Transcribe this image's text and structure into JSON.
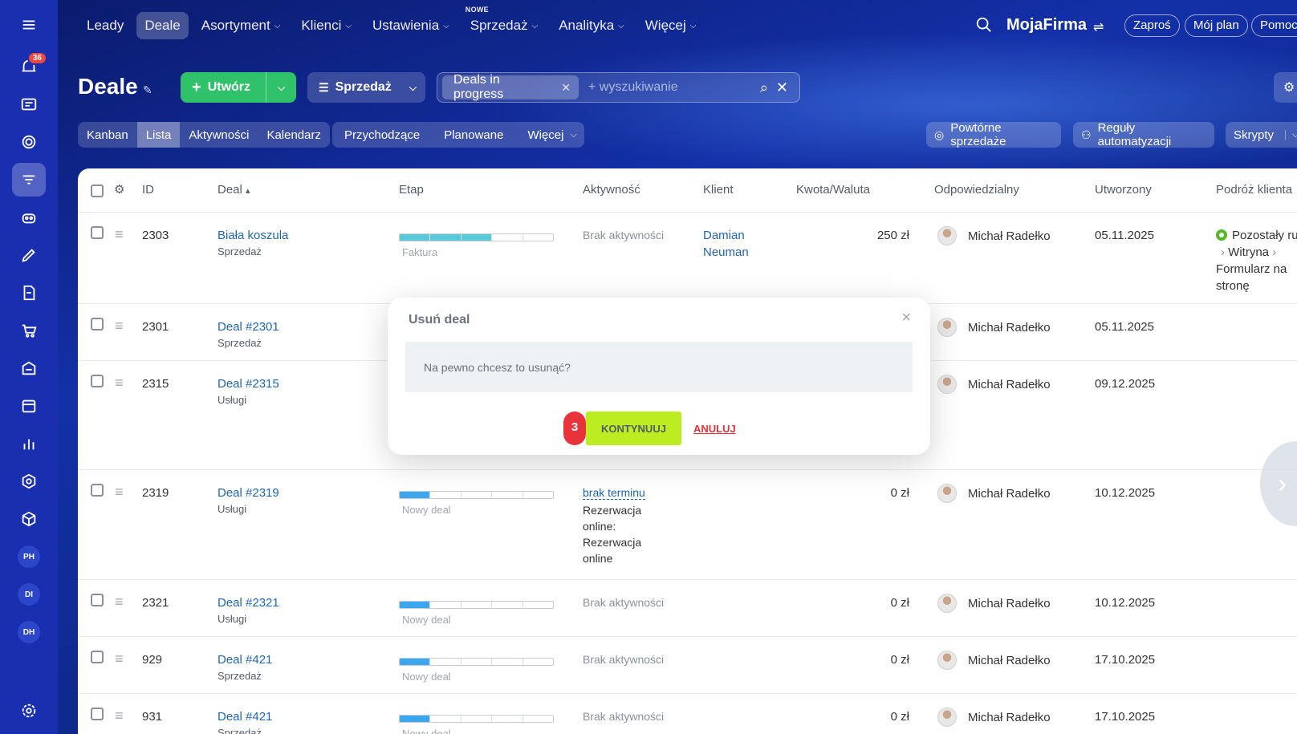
{
  "colors": {
    "accent_green": "#2fc26b",
    "sidebar": "#1a2fb0",
    "continue_btn": "#bbed21",
    "danger": "#e8333b",
    "link": "#2067b0"
  },
  "sidebar": {
    "notification_badge": "36",
    "avatars": [
      "PH",
      "DI",
      "DH"
    ]
  },
  "topnav": {
    "items": [
      {
        "label": "Leady"
      },
      {
        "label": "Deale"
      },
      {
        "label": "Asortyment"
      },
      {
        "label": "Klienci"
      },
      {
        "label": "Ustawienia"
      },
      {
        "label": "Sprzedaż",
        "badge": "NOWE"
      },
      {
        "label": "Analityka"
      },
      {
        "label": "Więcej"
      }
    ],
    "brand": "MojaFirma",
    "invite": "Zaproś",
    "my_plan": "Mój plan",
    "help": "Pomoc"
  },
  "header": {
    "title": "Deale",
    "create_label": "Utwórz",
    "funnel_label": "Sprzedaż",
    "filter_chip": "Deals in progress",
    "search_placeholder": "+ wyszukiwanie"
  },
  "view_tabs": [
    "Kanban",
    "Lista",
    "Aktywności",
    "Kalendarz"
  ],
  "sub_tabs": {
    "incoming": "Przychodzące",
    "planned": "Planowane",
    "more": "Więcej"
  },
  "actions": {
    "repeat_sales": "Powtórne sprzedaże",
    "automation": "Reguły automatyzacji",
    "scripts": "Skrypty"
  },
  "table": {
    "columns": {
      "id": "ID",
      "deal": "Deal",
      "stage": "Etap",
      "activity": "Aktywność",
      "client": "Klient",
      "amount": "Kwota/Waluta",
      "responsible": "Odpowiedzialny",
      "created": "Utworzony",
      "journey": "Podróż klienta"
    },
    "rows": [
      {
        "id": "2303",
        "deal": "Biała koszula",
        "funnel": "Sprzedaż",
        "stage": "Faktura",
        "stage_progress": 0.6,
        "activity": "Brak aktywności",
        "client_first": "Damian",
        "client_last": "Neuman",
        "amount": "250 zł",
        "responsible": "Michał Radełko",
        "created": "05.11.2025",
        "journey_1": "Pozostały ru",
        "journey_2": "Witryna",
        "journey_3": "Formularz na",
        "journey_4": "stronę"
      },
      {
        "id": "2301",
        "deal": "Deal #2301",
        "funnel": "Sprzedaż",
        "responsible": "Michał Radełko",
        "created": "05.11.2025"
      },
      {
        "id": "2315",
        "deal": "Deal #2315",
        "funnel": "Usługi",
        "responsible": "Michał Radełko",
        "created": "09.12.2025"
      },
      {
        "id": "2319",
        "deal": "Deal #2319",
        "funnel": "Usługi",
        "stage": "Nowy deal",
        "stage_progress": 0.2,
        "activity": "brak terminu",
        "activity_note_1": "Rezerwacja",
        "activity_note_2": "online:",
        "activity_note_3": "Rezerwacja",
        "activity_note_4": "online",
        "amount": "0 zł",
        "responsible": "Michał Radełko",
        "created": "10.12.2025"
      },
      {
        "id": "2321",
        "deal": "Deal #2321",
        "funnel": "Usługi",
        "stage": "Nowy deal",
        "stage_progress": 0.2,
        "activity": "Brak aktywności",
        "amount": "0 zł",
        "responsible": "Michał Radełko",
        "created": "10.12.2025"
      },
      {
        "id": "929",
        "deal": "Deal #421",
        "funnel": "Sprzedaż",
        "stage": "Nowy deal",
        "stage_progress": 0.2,
        "activity": "Brak aktywności",
        "amount": "0 zł",
        "responsible": "Michał Radełko",
        "created": "17.10.2025"
      },
      {
        "id": "931",
        "deal": "Deal #421",
        "funnel": "Sprzedaż",
        "stage": "Nowy deal",
        "stage_progress": 0.2,
        "activity": "Brak aktywności",
        "amount": "0 zł",
        "responsible": "Michał Radełko",
        "created": "17.10.2025"
      }
    ]
  },
  "modal": {
    "title": "Usuń deal",
    "message": "Na pewno chcesz to usunąć?",
    "step": "3",
    "continue_label": "KONTYNUUJ",
    "cancel_label": "ANULUJ"
  }
}
